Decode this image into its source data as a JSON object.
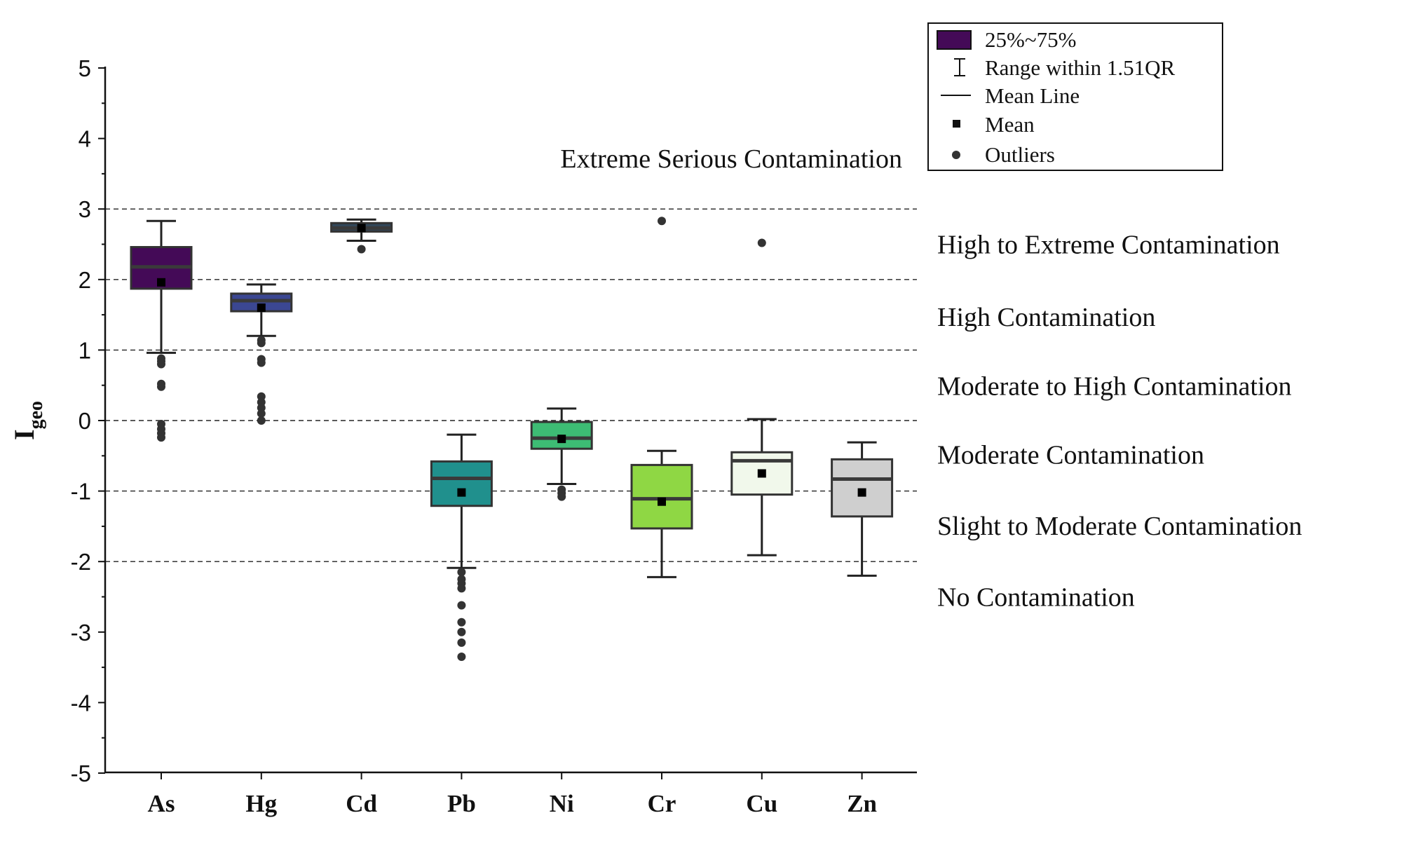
{
  "chart_data": {
    "type": "box",
    "ylabel": {
      "main": "I",
      "sub": "geo"
    },
    "ylim": [
      -5,
      5
    ],
    "yticks": [
      "5",
      "4",
      "3",
      "2",
      "1",
      "0",
      "-1",
      "-2",
      "-3",
      "-4",
      "-5"
    ],
    "ytick_values": [
      5,
      4,
      3,
      2,
      1,
      0,
      -1,
      -2,
      -3,
      -4,
      -5
    ],
    "categories": [
      "As",
      "Hg",
      "Cd",
      "Pb",
      "Ni",
      "Cr",
      "Cu",
      "Zn"
    ],
    "grid": "dashed horizontal class boundaries only",
    "class_lines": [
      3,
      2,
      1,
      0,
      -1,
      -2
    ],
    "zones": [
      {
        "label": "Extreme Serious Contamination",
        "y": 3.72
      },
      {
        "label": "High to Extreme Contamination",
        "y": 2.5
      },
      {
        "label": "High Contamination",
        "y": 1.47
      },
      {
        "label": "Moderate to High Contamination",
        "y": 0.49
      },
      {
        "label": "Moderate Contamination",
        "y": -0.48
      },
      {
        "label": "Slight to Moderate Contamination",
        "y": -1.49
      },
      {
        "label": "No Contamination",
        "y": -2.5
      }
    ],
    "boxes": [
      {
        "name": "As",
        "color": "#440a57",
        "whisker_low": 0.96,
        "q1": 1.87,
        "median": 2.18,
        "q3": 2.46,
        "whisker_high": 2.83,
        "mean": 1.96,
        "outliers": [
          0.88,
          0.84,
          0.8,
          0.52,
          0.48,
          -0.05,
          -0.12,
          -0.18,
          -0.24
        ]
      },
      {
        "name": "Hg",
        "color": "#3b4792",
        "whisker_low": 1.2,
        "q1": 1.55,
        "median": 1.7,
        "q3": 1.8,
        "whisker_high": 1.93,
        "mean": 1.6,
        "outliers": [
          1.14,
          1.1,
          0.87,
          0.82,
          0.34,
          0.26,
          0.18,
          0.1,
          0.0
        ]
      },
      {
        "name": "Cd",
        "color": "#31475a",
        "whisker_low": 2.55,
        "q1": 2.68,
        "median": 2.73,
        "q3": 2.8,
        "whisker_high": 2.85,
        "mean": 2.73,
        "outliers": [
          2.43
        ]
      },
      {
        "name": "Pb",
        "color": "#20908d",
        "whisker_low": -2.09,
        "q1": -1.21,
        "median": -0.82,
        "q3": -0.58,
        "whisker_high": -0.2,
        "mean": -1.02,
        "outliers": [
          -2.15,
          -2.25,
          -2.31,
          -2.38,
          -2.62,
          -2.86,
          -3.0,
          -3.15,
          -3.35
        ]
      },
      {
        "name": "Ni",
        "color": "#3dbc74",
        "whisker_low": -0.9,
        "q1": -0.4,
        "median": -0.25,
        "q3": -0.02,
        "whisker_high": 0.17,
        "mean": -0.26,
        "outliers": [
          -0.98,
          -1.03,
          -1.08
        ]
      },
      {
        "name": "Cr",
        "color": "#8fd744",
        "whisker_low": -2.22,
        "q1": -1.53,
        "median": -1.11,
        "q3": -0.63,
        "whisker_high": -0.43,
        "mean": -1.15,
        "outliers": [
          2.83
        ]
      },
      {
        "name": "Cu",
        "color": "#f1f8eb",
        "whisker_low": -1.91,
        "q1": -1.05,
        "median": -0.57,
        "q3": -0.45,
        "whisker_high": 0.02,
        "mean": -0.75,
        "outliers": [
          2.52
        ]
      },
      {
        "name": "Zn",
        "color": "#cfcfcf",
        "whisker_low": -2.2,
        "q1": -1.36,
        "median": -0.83,
        "q3": -0.55,
        "whisker_high": -0.31,
        "mean": -1.02,
        "outliers": []
      }
    ],
    "legend": {
      "placement": "top-right",
      "items": [
        {
          "label": "25%~75%",
          "icon": "box-swatch",
          "color": "#440a57"
        },
        {
          "label": "Range within 1.51QR",
          "icon": "whisker-icon"
        },
        {
          "label": "Mean Line",
          "icon": "line-icon"
        },
        {
          "label": "Mean",
          "icon": "square-marker"
        },
        {
          "label": "Outliers",
          "icon": "dot-marker"
        }
      ]
    }
  }
}
